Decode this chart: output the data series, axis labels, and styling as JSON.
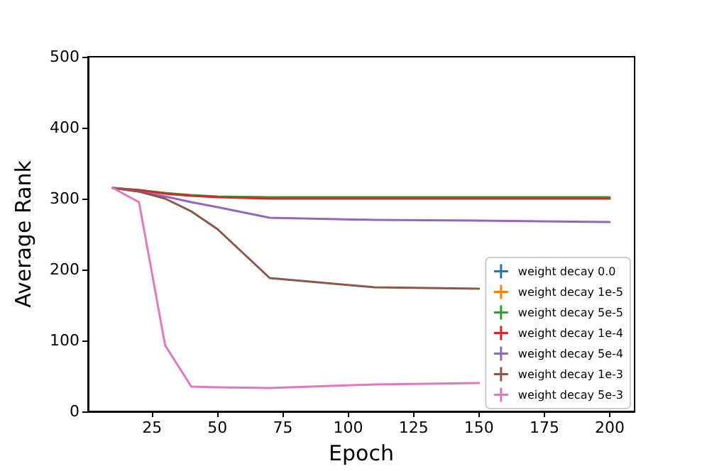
{
  "chart_data": {
    "type": "line",
    "xlabel": "Epoch",
    "ylabel": "Average Rank",
    "x": [
      10,
      20,
      30,
      40,
      50,
      70,
      110,
      150,
      200
    ],
    "series": [
      {
        "name": "weight decay 0.0",
        "color": "#1f77b4",
        "values": [
          null,
          null,
          null,
          null,
          null,
          null,
          null,
          null,
          null
        ]
      },
      {
        "name": "weight decay 1e-5",
        "color": "#ff7f0e",
        "values": [
          null,
          null,
          null,
          null,
          null,
          null,
          null,
          null,
          null
        ]
      },
      {
        "name": "weight decay 5e-5",
        "color": "#2ca02c",
        "values": [
          315,
          312,
          308,
          305,
          303,
          302,
          302,
          302,
          302
        ]
      },
      {
        "name": "weight decay 1e-4",
        "color": "#d62728",
        "values": [
          315,
          312,
          307,
          304,
          302,
          300,
          300,
          300,
          300
        ]
      },
      {
        "name": "weight decay 5e-4",
        "color": "#9467bd",
        "values": [
          315,
          310,
          303,
          295,
          288,
          273,
          270,
          269,
          267
        ]
      },
      {
        "name": "weight decay 1e-3",
        "color": "#8c564b",
        "values": [
          315,
          310,
          300,
          282,
          257,
          188,
          175,
          173,
          null
        ]
      },
      {
        "name": "weight decay 5e-3",
        "color": "#e377c2",
        "values": [
          315,
          295,
          93,
          35,
          34,
          33,
          38,
          40,
          null
        ]
      }
    ],
    "xlim": [
      0.5,
      209.5
    ],
    "xticks": [
      25,
      50,
      75,
      100,
      125,
      150,
      175,
      200
    ],
    "ylim": [
      0,
      500
    ],
    "yticks": [
      0,
      100,
      200,
      300,
      400,
      500
    ],
    "legend": "bottom right",
    "grid": false,
    "marker": "none",
    "line_style": "solid"
  }
}
